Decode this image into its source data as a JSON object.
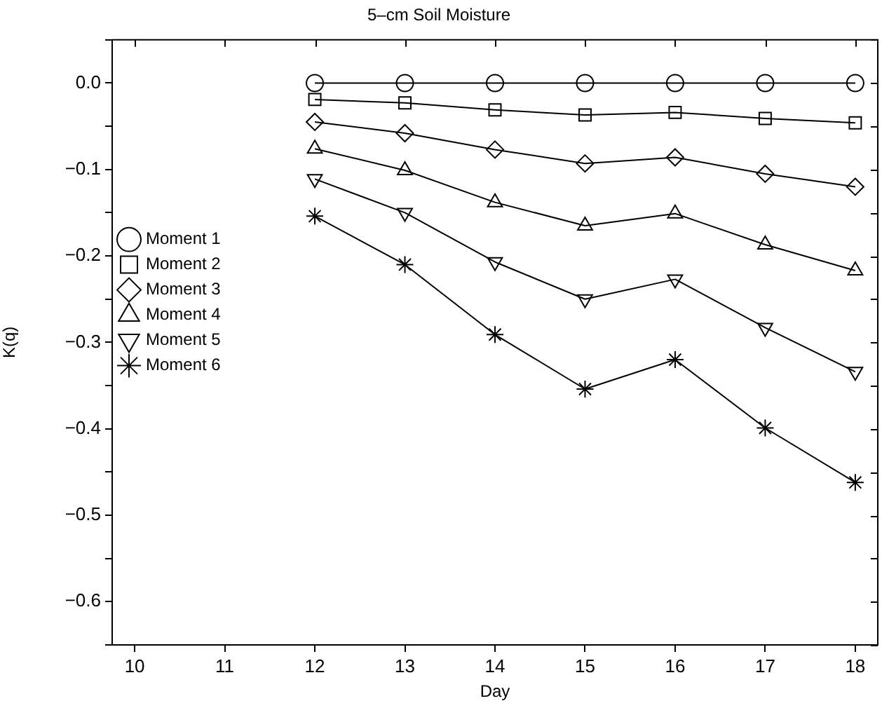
{
  "chart_data": {
    "type": "line",
    "title": "5–cm Soil Moisture",
    "xlabel": "Day",
    "ylabel": "K(q)",
    "x": [
      12,
      13,
      14,
      15,
      16,
      17,
      18
    ],
    "xlim": [
      9.75,
      18.25
    ],
    "xticks": [
      10,
      11,
      12,
      13,
      14,
      15,
      16,
      17,
      18
    ],
    "ylim": [
      -0.65,
      0.05
    ],
    "yticks": [
      {
        "value": -0.65,
        "label": null
      },
      {
        "value": -0.6,
        "label": "−0.6"
      },
      {
        "value": -0.55,
        "label": null
      },
      {
        "value": -0.5,
        "label": "−0.5"
      },
      {
        "value": -0.45,
        "label": null
      },
      {
        "value": -0.4,
        "label": "−0.4"
      },
      {
        "value": -0.35,
        "label": null
      },
      {
        "value": -0.3,
        "label": "−0.3"
      },
      {
        "value": -0.25,
        "label": null
      },
      {
        "value": -0.2,
        "label": "−0.2"
      },
      {
        "value": -0.15,
        "label": null
      },
      {
        "value": -0.1,
        "label": "−0.1"
      },
      {
        "value": -0.05,
        "label": null
      },
      {
        "value": 0,
        "label": "0.0"
      },
      {
        "value": 0.05,
        "label": null
      }
    ],
    "grid": false,
    "legend": "left",
    "line_style": "solid",
    "series": [
      {
        "name": "Moment 1",
        "color": "#000000",
        "marker": "circle",
        "values": [
          0,
          0,
          0,
          0,
          0,
          0,
          0
        ]
      },
      {
        "name": "Moment 2",
        "color": "#000000",
        "marker": "square",
        "values": [
          -0.019,
          -0.023,
          -0.031,
          -0.037,
          -0.034,
          -0.041,
          -0.046
        ]
      },
      {
        "name": "Moment 3",
        "color": "#000000",
        "marker": "diamond",
        "values": [
          -0.045,
          -0.058,
          -0.077,
          -0.093,
          -0.086,
          -0.105,
          -0.12
        ]
      },
      {
        "name": "Moment 4",
        "color": "#000000",
        "marker": "triangle",
        "values": [
          -0.076,
          -0.101,
          -0.138,
          -0.165,
          -0.151,
          -0.187,
          -0.217
        ]
      },
      {
        "name": "Moment 5",
        "color": "#000000",
        "marker": "triangle-down",
        "values": [
          -0.111,
          -0.15,
          -0.207,
          -0.25,
          -0.227,
          -0.283,
          -0.334
        ]
      },
      {
        "name": "Moment 6",
        "color": "#000000",
        "marker": "cross",
        "values": [
          -0.154,
          -0.21,
          -0.291,
          -0.354,
          -0.32,
          -0.399,
          -0.462
        ]
      }
    ]
  }
}
